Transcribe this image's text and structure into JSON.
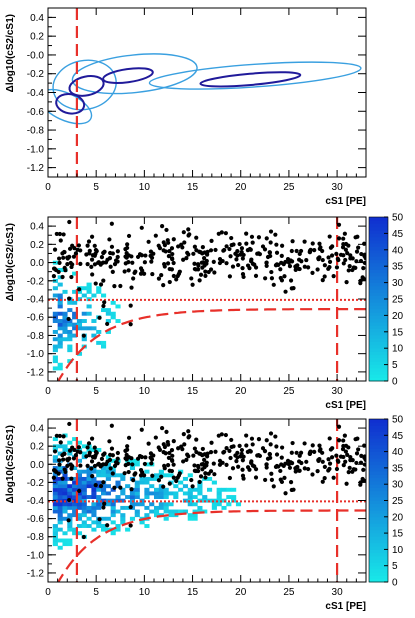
{
  "colors": {
    "threshold_line": "#e8302a",
    "contour_outer": "#3aa0e0",
    "contour_inner": "#201a9a",
    "points": "#000000",
    "colz_low": "#18e8e8",
    "colz_high": "#1030d0"
  },
  "chart_data": [
    {
      "type": "contour",
      "xlabel": "cS1 [PE]",
      "ylabel": "Δlog10(cS2/cS1)",
      "xlim": [
        0,
        33
      ],
      "ylim": [
        -1.3,
        0.5
      ],
      "x_ticks": [
        "0",
        "5",
        "10",
        "15",
        "20",
        "25",
        "30"
      ],
      "y_ticks": [
        "0.4",
        "0.2",
        "-0.0",
        "-0.2",
        "-0.4",
        "-0.6",
        "-0.8",
        "-1.0",
        "-1.2"
      ],
      "threshold_x": [
        3
      ],
      "contours": [
        {
          "name": "outer",
          "level": "outer",
          "cx": 1.8,
          "cy": -0.55,
          "rx": 1.4,
          "ry": 0.3,
          "angle": 65
        },
        {
          "name": "outer",
          "level": "outer",
          "cx": 3.8,
          "cy": -0.32,
          "rx": 3.3,
          "ry": 0.26,
          "angle": 12
        },
        {
          "name": "outer",
          "level": "outer",
          "cx": 9.0,
          "cy": -0.2,
          "rx": 6.5,
          "ry": 0.2,
          "angle": 6
        },
        {
          "name": "outer",
          "level": "outer",
          "cx": 21.5,
          "cy": -0.22,
          "rx": 11.0,
          "ry": 0.12,
          "angle": 4
        },
        {
          "name": "inner",
          "level": "inner",
          "cx": 2.3,
          "cy": -0.52,
          "rx": 1.0,
          "ry": 0.15,
          "angle": 80
        },
        {
          "name": "inner",
          "level": "inner",
          "cx": 4.0,
          "cy": -0.33,
          "rx": 1.8,
          "ry": 0.1,
          "angle": 12
        },
        {
          "name": "inner",
          "level": "inner",
          "cx": 8.3,
          "cy": -0.22,
          "rx": 2.6,
          "ry": 0.07,
          "angle": 8
        },
        {
          "name": "inner",
          "level": "inner",
          "cx": 21.0,
          "cy": -0.26,
          "rx": 5.2,
          "ry": 0.06,
          "angle": 5
        }
      ]
    },
    {
      "type": "heatmap",
      "xlabel": "cS1 [PE]",
      "ylabel": "Δlog10(cS2/cS1)",
      "xlim": [
        0,
        33
      ],
      "ylim": [
        -1.3,
        0.5
      ],
      "x_ticks": [
        "0",
        "5",
        "10",
        "15",
        "20",
        "25",
        "30"
      ],
      "y_ticks": [
        "0.4",
        "0.2",
        "0.0",
        "-0.2",
        "-0.4",
        "-0.6",
        "-0.8",
        "-1.0",
        "-1.2"
      ],
      "colorbar_ticks": [
        "0",
        "5",
        "10",
        "15",
        "20",
        "25",
        "30",
        "35",
        "40",
        "45",
        "50"
      ],
      "zlim": [
        0,
        50
      ],
      "threshold_x": [
        3,
        30
      ],
      "dotted_y": -0.41,
      "dashed_curve": {
        "a": -0.46,
        "b": 0.18,
        "x0": 1.9
      },
      "band": {
        "center": -0.7,
        "width": 0.5,
        "xmax": 8,
        "peak": 38,
        "seed": 11,
        "density": 0.55
      },
      "scatter": {
        "count": 380,
        "mean": 0.05,
        "sigma": 0.14,
        "xmin": 0.6,
        "xmax": 33,
        "seed": 7,
        "low_count": 12
      }
    },
    {
      "type": "heatmap",
      "xlabel": "cS1 [PE]",
      "ylabel": "Δlog10(cS2/cS1)",
      "xlim": [
        0,
        33
      ],
      "ylim": [
        -1.3,
        0.5
      ],
      "x_ticks": [
        "0",
        "5",
        "10",
        "15",
        "20",
        "25",
        "30"
      ],
      "y_ticks": [
        "0.4",
        "0.2",
        "0.0",
        "-0.2",
        "-0.4",
        "-0.6",
        "-0.8",
        "-1.0",
        "-1.2"
      ],
      "colorbar_ticks": [
        "0",
        "5",
        "10",
        "15",
        "20",
        "25",
        "30",
        "35",
        "40",
        "45",
        "50"
      ],
      "zlim": [
        0,
        50
      ],
      "threshold_x": [
        3,
        30
      ],
      "dotted_y": -0.41,
      "dashed_curve": {
        "a": -0.46,
        "b": 0.18,
        "x0": 1.9
      },
      "band": {
        "center": -0.38,
        "width": 0.55,
        "xmax": 22,
        "peak": 45,
        "seed": 23,
        "density": 0.75
      },
      "scatter": {
        "count": 380,
        "mean": 0.05,
        "sigma": 0.14,
        "xmin": 0.6,
        "xmax": 33,
        "seed": 7,
        "low_count": 12
      }
    }
  ]
}
